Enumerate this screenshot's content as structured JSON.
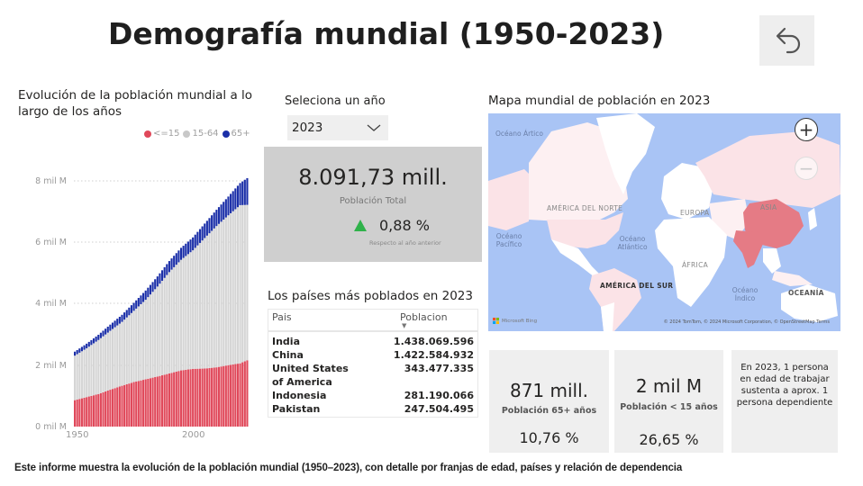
{
  "header": {
    "title": "Demografía mundial  (1950-2023)",
    "back_icon": "back-arrow-icon"
  },
  "population_chart": {
    "title": "Evolución de la población mundial a lo largo de los años",
    "legend": [
      {
        "label": "<=15",
        "color": "#e0485a"
      },
      {
        "label": "15-64",
        "color": "#c8c8c8"
      },
      {
        "label": "65+",
        "color": "#1b2fa8"
      }
    ],
    "y_ticks": [
      "8 mil M",
      "6 mil M",
      "4 mil M",
      "2 mil M",
      "0 mil M"
    ],
    "x_ticks": [
      "1950",
      "2000"
    ]
  },
  "chart_data": {
    "type": "bar",
    "stacked": true,
    "title": "Evolución de la población mundial a lo largo de los años",
    "xlabel": "",
    "ylabel": "",
    "ylim": [
      0,
      8000000000
    ],
    "y_tick_labels": [
      "0 mil M",
      "2 mil M",
      "4 mil M",
      "6 mil M",
      "8 mil M"
    ],
    "x_tick_labels": [
      "1950",
      "2000"
    ],
    "grid": "horizontal dotted",
    "legend_position": "top-right",
    "x": [
      1950,
      1955,
      1960,
      1965,
      1970,
      1975,
      1980,
      1985,
      1990,
      1995,
      2000,
      2005,
      2010,
      2015,
      2020,
      2023
    ],
    "series": [
      {
        "name": "<=15",
        "color": "#e0485a",
        "values": [
          0.86,
          0.96,
          1.06,
          1.2,
          1.33,
          1.45,
          1.54,
          1.63,
          1.73,
          1.83,
          1.88,
          1.89,
          1.93,
          2.0,
          2.06,
          2.16
        ]
      },
      {
        "name": "15-64",
        "color": "#d5d5d5",
        "values": [
          1.45,
          1.59,
          1.76,
          1.92,
          2.08,
          2.32,
          2.59,
          2.93,
          3.3,
          3.6,
          3.86,
          4.25,
          4.6,
          4.88,
          5.15,
          5.06
        ]
      },
      {
        "name": "65+",
        "color": "#1b2fa8",
        "values": [
          0.13,
          0.15,
          0.17,
          0.2,
          0.23,
          0.26,
          0.3,
          0.33,
          0.36,
          0.39,
          0.42,
          0.47,
          0.53,
          0.61,
          0.72,
          0.87
        ]
      }
    ],
    "units": "mil M (billions)"
  },
  "year_slicer": {
    "label": "Seleciona un año",
    "selected": "2023"
  },
  "kpi_total": {
    "value": "8.091,73 mill.",
    "label": "Población Total",
    "delta": "0,88 %",
    "delta_note": "Respecto al año anterior",
    "delta_color": "#2fb24a"
  },
  "top_countries": {
    "title": "Los países más poblados en 2023",
    "columns": [
      "Pais",
      "Poblacion"
    ],
    "rows": [
      {
        "country": "India",
        "population": "1.438.069.596"
      },
      {
        "country": "China",
        "population": "1.422.584.932"
      },
      {
        "country": "United States of America",
        "population": "343.477.335"
      },
      {
        "country": "Indonesia",
        "population": "281.190.066"
      },
      {
        "country": "Pakistan",
        "population": "247.504.495"
      }
    ]
  },
  "map": {
    "title": "Mapa mundial de población en 2023",
    "labels": {
      "arctic": "Océano Ártico",
      "pacific": "Océano Pacífico",
      "atlantic": "Océano Atlántico",
      "indian": "Océano Índico",
      "north_america": "AMÉRICA DEL NORTE",
      "south_america": "AMÉRICA DEL SUR",
      "europe": "EUROPA",
      "asia": "ASIA",
      "africa": "ÁFRICA",
      "oceania": "OCEANÍA"
    },
    "zoom_in": "+",
    "zoom_out": "−",
    "brand": "Microsoft Bing",
    "attribution": "© 2024 TomTom, © 2024 Microsoft Corporation, © OpenStreetMap  Terms",
    "highlight_color": "#e57b85",
    "light_color": "#fbe3e7",
    "ocean_color": "#a9c4f5"
  },
  "cards": {
    "elderly": {
      "value": "871 mill.",
      "label": "Población 65+ años",
      "pct": "10,76 %"
    },
    "children": {
      "value": "2 mil M",
      "label": "Población < 15 años",
      "pct": "26,65 %"
    },
    "dependency": {
      "text": "En 2023, 1 persona en edad de trabajar sustenta a aprox. 1 persona dependiente"
    }
  },
  "footer": {
    "text": "Este informe muestra la evolución de la población mundial (1950–2023), con detalle por franjas de edad, países y relación de dependencia"
  }
}
